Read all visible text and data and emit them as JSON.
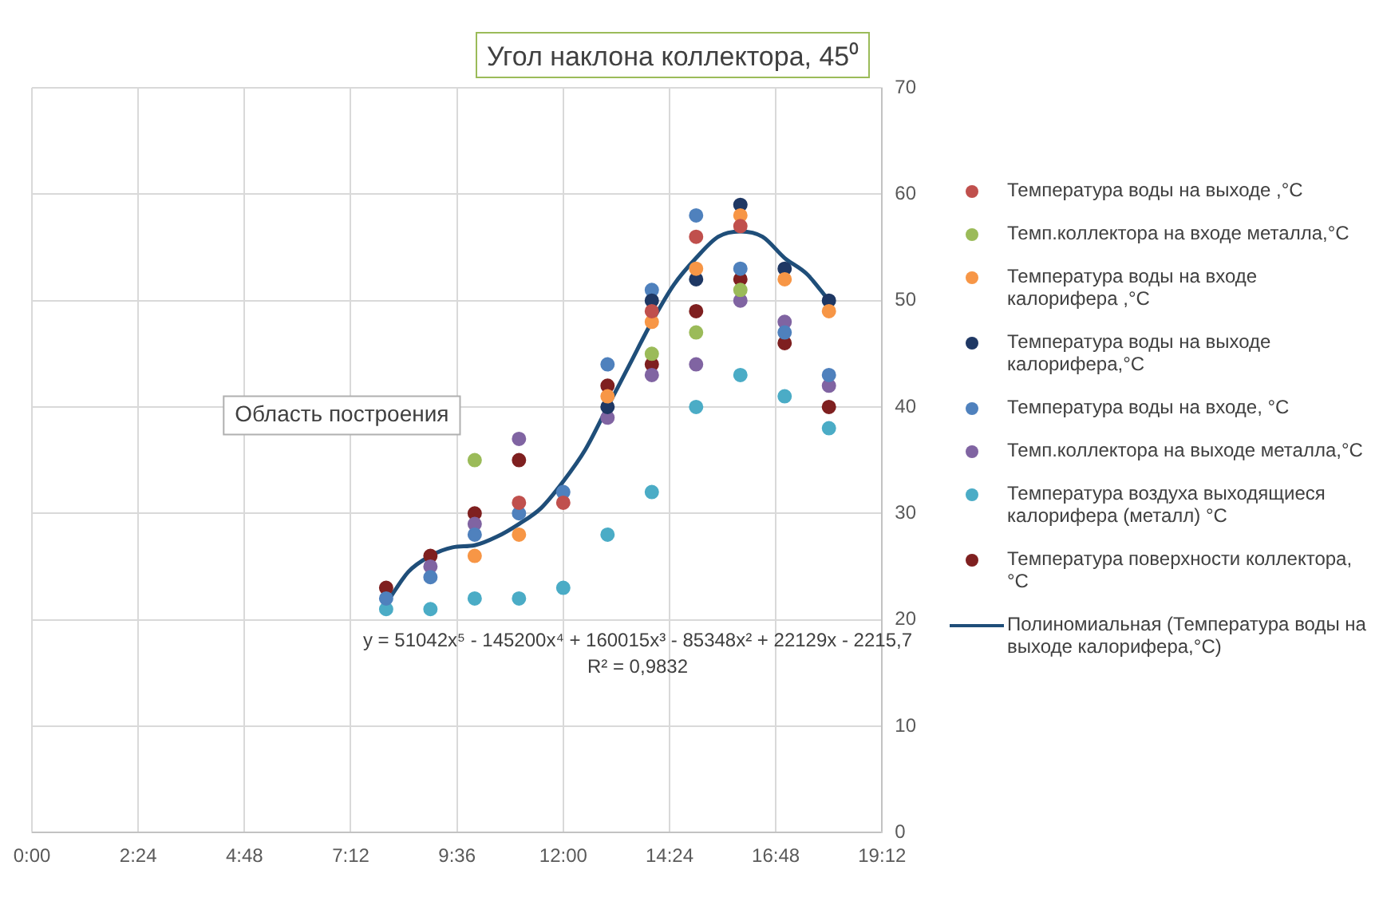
{
  "chart_data": {
    "type": "scatter",
    "title": "Угол наклона коллектора, 45⁰",
    "marker": "circle",
    "legend": "right",
    "grid": true,
    "x": [
      8,
      9,
      10,
      11,
      12,
      13,
      14,
      15,
      16,
      17,
      18
    ],
    "xlim": [
      0,
      19.2
    ],
    "xticks": [
      {
        "value": 0,
        "label": "0:00"
      },
      {
        "value": 2.4,
        "label": "2:24"
      },
      {
        "value": 4.8,
        "label": "4:48"
      },
      {
        "value": 7.2,
        "label": "7:12"
      },
      {
        "value": 9.6,
        "label": "9:36"
      },
      {
        "value": 12,
        "label": "12:00"
      },
      {
        "value": 14.4,
        "label": "14:24"
      },
      {
        "value": 16.8,
        "label": "16:48"
      },
      {
        "value": 19.2,
        "label": "19:12"
      }
    ],
    "ylim": [
      0,
      70
    ],
    "yticks": [
      0,
      10,
      20,
      30,
      40,
      50,
      60,
      70
    ],
    "series": [
      {
        "name": "Температура воды на выходе ,°C",
        "color": "#c0504d",
        "values": [
          null,
          null,
          null,
          31,
          31,
          null,
          49,
          56,
          57,
          null,
          null
        ]
      },
      {
        "name": "Темп.коллектора на входе металла,°C",
        "color": "#9bbb59",
        "values": [
          null,
          null,
          35,
          null,
          null,
          null,
          45,
          47,
          51,
          null,
          null
        ]
      },
      {
        "name": "Температура воды на входе калорифера ,°C",
        "color": "#f79646",
        "values": [
          null,
          null,
          26,
          28,
          null,
          41,
          48,
          53,
          58,
          52,
          49
        ]
      },
      {
        "name": "Температура воды на выходе калорифера,°C",
        "color": "#1f3864",
        "values": [
          null,
          null,
          null,
          null,
          null,
          40,
          50,
          52,
          59,
          53,
          50
        ]
      },
      {
        "name": "Температура воды на входе, °C",
        "color": "#4f81bd",
        "values": [
          22,
          24,
          28,
          30,
          32,
          44,
          51,
          58,
          53,
          47,
          43
        ]
      },
      {
        "name": "Темп.коллектора на выходе металла,°C",
        "color": "#8064a2",
        "values": [
          null,
          25,
          29,
          37,
          null,
          39,
          43,
          44,
          50,
          48,
          42
        ]
      },
      {
        "name": "Температура воздуха выходящиеся калорифера (металл) °C",
        "color": "#4bacc6",
        "values": [
          21,
          21,
          22,
          22,
          23,
          28,
          32,
          40,
          43,
          41,
          38
        ]
      },
      {
        "name": "Температура поверхности коллектора,°C",
        "color": "#7f2020",
        "values": [
          23,
          26,
          30,
          35,
          null,
          42,
          44,
          49,
          52,
          46,
          40
        ]
      },
      {
        "name": "Полиномиальная (Температура воды на выходе калорифера,°C)",
        "type": "line",
        "marker": "none",
        "color": "#1f4e79",
        "x": [
          8,
          8.5,
          9,
          9.5,
          10,
          10.5,
          11,
          11.5,
          12,
          12.5,
          13,
          13.5,
          14,
          14.5,
          15,
          15.5,
          16,
          16.5,
          17,
          17.5,
          18
        ],
        "values": [
          21.5,
          24.5,
          26,
          26.8,
          27,
          27.8,
          29,
          30.5,
          33,
          36,
          40,
          44,
          48,
          51.5,
          54,
          56,
          56.5,
          56,
          54,
          52.5,
          50
        ]
      }
    ],
    "annotations": [
      "y = 51042x⁵ - 145200x⁴ + 160015x³ - 85348x² + 22129x - 2215,7",
      "R² = 0,9832",
      "Область построения"
    ]
  }
}
